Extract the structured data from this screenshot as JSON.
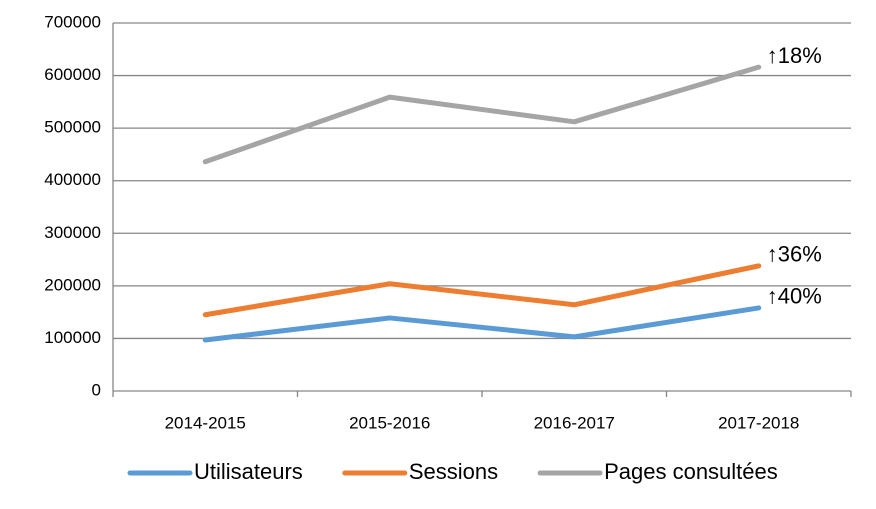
{
  "chart_data": {
    "type": "line",
    "categories": [
      "2014-2015",
      "2015-2016",
      "2016-2017",
      "2017-2018"
    ],
    "series": [
      {
        "name": "Utilisateurs",
        "color": "#5b9bd5",
        "values": [
          97000,
          139000,
          103000,
          158000
        ],
        "annotation": "↑40%"
      },
      {
        "name": "Sessions",
        "color": "#ed7d31",
        "values": [
          145000,
          204000,
          164000,
          238000
        ],
        "annotation": "↑36%"
      },
      {
        "name": "Pages consultées",
        "color": "#a5a5a5",
        "values": [
          436000,
          559000,
          512000,
          616000
        ],
        "annotation": "↑18%"
      }
    ],
    "ylim": [
      0,
      700000
    ],
    "yticks": [
      0,
      100000,
      200000,
      300000,
      400000,
      500000,
      600000,
      700000
    ],
    "grid": true,
    "legend": "bottom"
  }
}
